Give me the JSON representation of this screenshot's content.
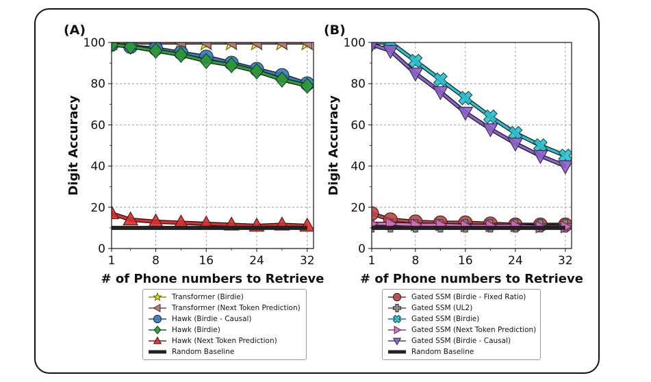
{
  "chart_data": [
    {
      "type": "line",
      "panel_label": "(A)",
      "xlabel": "# of Phone numbers to Retrieve",
      "ylabel": "Digit Accuracy",
      "xlim": [
        1,
        33
      ],
      "ylim": [
        0,
        100
      ],
      "xticks": [
        1,
        8,
        16,
        24,
        32
      ],
      "yticks": [
        0,
        20,
        40,
        60,
        80,
        100
      ],
      "grid": true,
      "legend_position": "below",
      "x": [
        1,
        4,
        8,
        12,
        16,
        20,
        24,
        28,
        32
      ],
      "series": [
        {
          "name": "Transformer (Birdie)",
          "marker": "star",
          "color": "#f2e41c",
          "values": [
            100,
            100,
            100,
            100,
            100,
            100,
            100,
            100,
            100
          ]
        },
        {
          "name": "Transformer (Next Token Prediction)",
          "marker": "triangle-left",
          "color": "#b07a7a",
          "values": [
            100,
            100,
            100,
            100,
            100,
            100,
            100,
            100,
            100
          ]
        },
        {
          "name": "Hawk (Birdie - Causal)",
          "marker": "circle",
          "color": "#3a78b8",
          "values": [
            99,
            98,
            97,
            95,
            93,
            90,
            87,
            84,
            80
          ]
        },
        {
          "name": "Hawk (Birdie)",
          "marker": "diamond",
          "color": "#2e9a3a",
          "values": [
            99,
            98,
            96,
            94,
            91,
            89,
            86,
            82,
            79
          ]
        },
        {
          "name": "Hawk (Next Token Prediction)",
          "marker": "triangle-up",
          "color": "#d83030",
          "values": [
            17,
            14,
            13,
            12.5,
            12,
            11.5,
            11,
            11.5,
            11
          ]
        },
        {
          "name": "Random Baseline",
          "marker": "line",
          "color": "#222222",
          "values": [
            10,
            10,
            10,
            10,
            10,
            10,
            10,
            10,
            10
          ]
        }
      ]
    },
    {
      "type": "line",
      "panel_label": "(B)",
      "xlabel": "# of Phone numbers to Retrieve",
      "ylabel": "Digit Accuracy",
      "xlim": [
        1,
        33
      ],
      "ylim": [
        0,
        100
      ],
      "xticks": [
        1,
        8,
        16,
        24,
        32
      ],
      "yticks": [
        0,
        20,
        40,
        60,
        80,
        100
      ],
      "grid": true,
      "legend_position": "below",
      "x": [
        1,
        4,
        8,
        12,
        16,
        20,
        24,
        28,
        32
      ],
      "series": [
        {
          "name": "Gated SSM (Birdie - Fixed Ratio)",
          "marker": "circle",
          "color": "#b84848",
          "values": [
            17,
            14,
            13,
            12.5,
            12.5,
            12,
            11.5,
            11.5,
            11.5
          ]
        },
        {
          "name": "Gated SSM (UL2)",
          "marker": "plus",
          "color": "#888888",
          "values": [
            11,
            11,
            11,
            11,
            11,
            11,
            11,
            11,
            11
          ]
        },
        {
          "name": "Gated SSM (Birdie)",
          "marker": "x",
          "color": "#2cc0cc",
          "values": [
            100,
            100,
            91,
            82,
            73,
            64,
            56,
            50,
            45
          ]
        },
        {
          "name": "Gated SSM (Next Token Prediction)",
          "marker": "triangle-right",
          "color": "#d86cc0",
          "values": [
            12,
            12,
            11.5,
            11.5,
            11,
            11,
            11,
            10.5,
            10.5
          ]
        },
        {
          "name": "Gated SSM (Birdie - Causal)",
          "marker": "triangle-down",
          "color": "#8a62c8",
          "values": [
            99,
            96,
            85,
            76,
            66,
            58,
            51,
            45,
            40
          ]
        },
        {
          "name": "Random Baseline",
          "marker": "line",
          "color": "#222222",
          "values": [
            10,
            10,
            10,
            10,
            10,
            10,
            10,
            10,
            10
          ]
        }
      ]
    }
  ]
}
